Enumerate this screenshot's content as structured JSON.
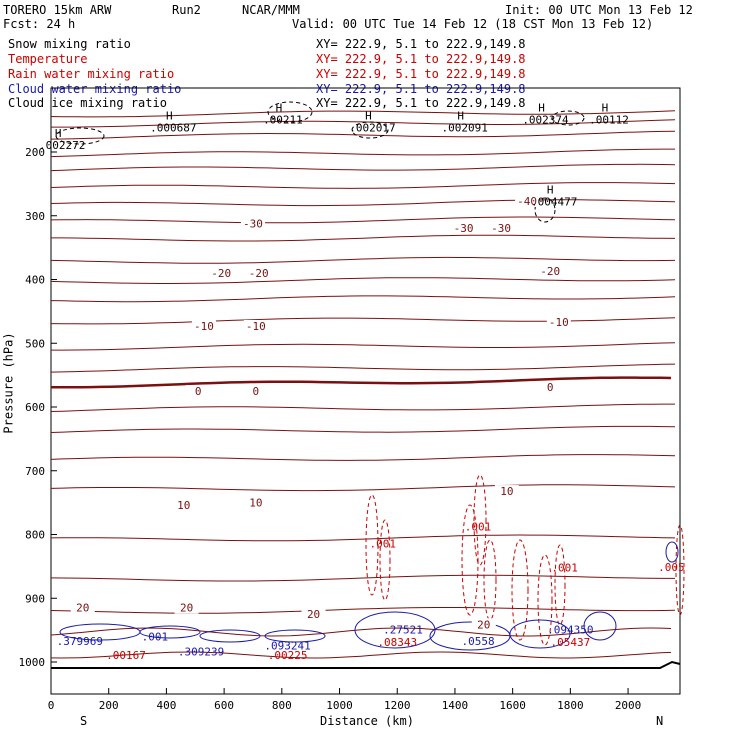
{
  "header": {
    "model": "TORERO 15km ARW",
    "run": "Run2",
    "org": "NCAR/MMM",
    "init": "Init: 00 UTC Mon 13 Feb 12",
    "fcst": "Fcst: 24 h",
    "valid": "Valid: 00 UTC Tue 14 Feb 12 (18 CST Mon 13 Feb 12)"
  },
  "fields": [
    {
      "label": "Snow mixing ratio",
      "xy": "",
      "color": "#000000"
    },
    {
      "label": "Temperature",
      "xy": "XY= 222.9, 5.1 to 222.9,149.8",
      "color": "#cc0000"
    },
    {
      "label": "Rain water mixing ratio",
      "xy": "XY= 222.9, 5.1 to 222.9,149.8",
      "color": "#cc0000"
    },
    {
      "label": "Cloud water mixing ratio",
      "xy": "XY= 222.9, 5.1 to 222.9,149.8",
      "color": "#1a1aaa"
    },
    {
      "label": "Cloud ice mixing ratio",
      "xy": "XY= 222.9, 5.1 to 222.9,149.8",
      "color": "#000000"
    }
  ],
  "xy_top": "XY= 222.9, 5.1 to 222.9,149.8",
  "chart_data": {
    "type": "contour cross-section",
    "xlabel": "Distance (km)",
    "ylabel": "Pressure (hPa)",
    "xlim": [
      0,
      2180
    ],
    "ylim": [
      1050,
      125
    ],
    "x_ticks": [
      0,
      200,
      400,
      600,
      800,
      1000,
      1200,
      1400,
      1600,
      1800,
      2000
    ],
    "y_ticks": [
      200,
      300,
      400,
      500,
      600,
      700,
      800,
      900,
      1000
    ],
    "end_labels": {
      "left": "S",
      "right": "N"
    },
    "temperature_labels": [
      {
        "value": "-40",
        "x": 1650,
        "y": 280
      },
      {
        "value": "-30",
        "x": 700,
        "y": 315
      },
      {
        "value": "-30",
        "x": 1430,
        "y": 322
      },
      {
        "value": "-30",
        "x": 1560,
        "y": 322
      },
      {
        "value": "-20",
        "x": 590,
        "y": 393
      },
      {
        "value": "-20",
        "x": 720,
        "y": 393
      },
      {
        "value": "-20",
        "x": 1730,
        "y": 390
      },
      {
        "value": "-10",
        "x": 530,
        "y": 476
      },
      {
        "value": "-10",
        "x": 710,
        "y": 476
      },
      {
        "value": "-10",
        "x": 1760,
        "y": 470
      },
      {
        "value": "0",
        "x": 510,
        "y": 578
      },
      {
        "value": "0",
        "x": 710,
        "y": 578
      },
      {
        "value": "0",
        "x": 1730,
        "y": 572
      },
      {
        "value": "10",
        "x": 460,
        "y": 757
      },
      {
        "value": "10",
        "x": 710,
        "y": 753
      },
      {
        "value": "10",
        "x": 1580,
        "y": 735
      },
      {
        "value": "20",
        "x": 110,
        "y": 918
      },
      {
        "value": "20",
        "x": 470,
        "y": 918
      },
      {
        "value": "20",
        "x": 910,
        "y": 928
      },
      {
        "value": "20",
        "x": 1500,
        "y": 944
      }
    ],
    "snow_maxima": [
      {
        "value": ".002272",
        "x": 25,
        "y": 195
      },
      {
        "value": ".000687",
        "x": 410,
        "y": 168
      },
      {
        "value": ".00211",
        "x": 790,
        "y": 155
      },
      {
        "value": ".002017",
        "x": 1100,
        "y": 168
      },
      {
        "value": ".002091",
        "x": 1420,
        "y": 168
      },
      {
        "value": ".002374",
        "x": 1700,
        "y": 155
      },
      {
        "value": ".00112",
        "x": 1920,
        "y": 155
      },
      {
        "value": ".004477",
        "x": 1730,
        "y": 284
      }
    ],
    "rain_labels": [
      {
        "value": ".001",
        "x": 1150,
        "y": 820
      },
      {
        "value": ".001",
        "x": 1480,
        "y": 794
      },
      {
        "value": ".001",
        "x": 1780,
        "y": 858
      },
      {
        "value": ".005",
        "x": 2150,
        "y": 857
      },
      {
        "value": ".00167",
        "x": 260,
        "y": 995
      },
      {
        "value": ".00225",
        "x": 820,
        "y": 995
      },
      {
        "value": ".08343",
        "x": 1200,
        "y": 975
      },
      {
        "value": ".05437",
        "x": 1800,
        "y": 975
      }
    ],
    "cloud_water_labels": [
      {
        "value": ".379969",
        "x": 100,
        "y": 973
      },
      {
        "value": ".001",
        "x": 360,
        "y": 966
      },
      {
        "value": ".309239",
        "x": 520,
        "y": 990
      },
      {
        "value": ".093241",
        "x": 820,
        "y": 980
      },
      {
        "value": ".27521",
        "x": 1220,
        "y": 955
      },
      {
        "value": ".0558",
        "x": 1480,
        "y": 973
      },
      {
        "value": ".094350",
        "x": 1800,
        "y": 955
      }
    ]
  }
}
